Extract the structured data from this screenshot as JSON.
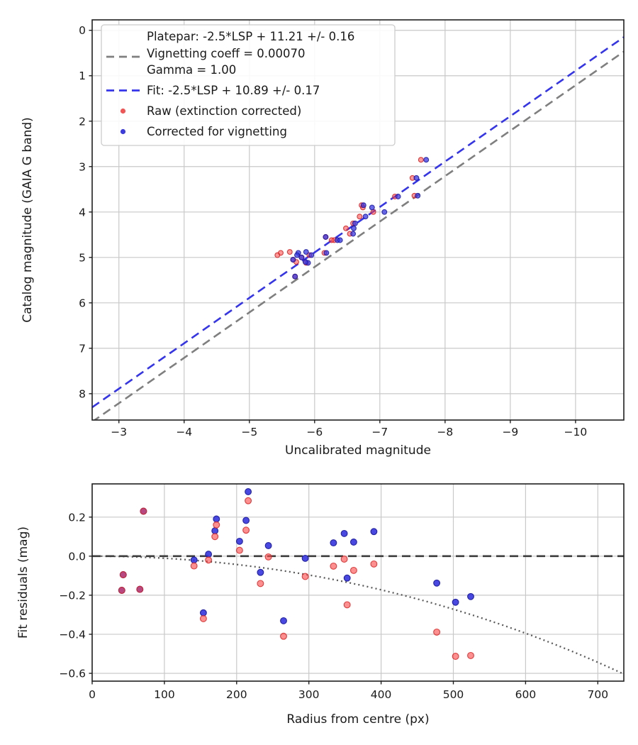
{
  "figure": {
    "background": "#ffffff",
    "grid_color": "#c9c9c9",
    "spine_color": "#1f1f1f"
  },
  "chart_data": [
    {
      "type": "scatter",
      "title": "",
      "xlabel": "Uncalibrated magnitude",
      "ylabel": "Catalog magnitude (GAIA G band)",
      "x_inverted": true,
      "y_inverted": true,
      "xlim": [
        -10.74,
        -2.59
      ],
      "ylim": [
        -0.23,
        8.58
      ],
      "grid": true,
      "x_ticks": {
        "values": [
          -3,
          -4,
          -5,
          -6,
          -7,
          -8,
          -9,
          -10
        ],
        "labels": [
          "−3",
          "−4",
          "−5",
          "−6",
          "−7",
          "−8",
          "−9",
          "−10"
        ]
      },
      "y_ticks": {
        "values": [
          0,
          1,
          2,
          3,
          4,
          5,
          6,
          7,
          8
        ],
        "labels": [
          "0",
          "1",
          "2",
          "3",
          "4",
          "5",
          "6",
          "7",
          "8"
        ]
      },
      "legend": {
        "position": "upper left",
        "entries": [
          {
            "marker": "dashed-line",
            "color": "#7f7f7f",
            "label_lines": [
              "Platepar: -2.5*LSP + 11.21 +/- 0.16",
              "Vignetting coeff = 0.00070",
              "Gamma = 1.00"
            ]
          },
          {
            "marker": "dashed-line",
            "color": "#3434ee",
            "label_lines": [
              "Fit: -2.5*LSP + 10.89 +/- 0.17"
            ]
          },
          {
            "marker": "dot",
            "color": "#f25555",
            "label_lines": [
              "Raw (extinction corrected)"
            ]
          },
          {
            "marker": "dot",
            "color": "#3c3cdf",
            "label_lines": [
              "Corrected for vignetting"
            ]
          }
        ]
      },
      "lines": [
        {
          "name": "platepar-line",
          "equation": "catalog = uncalibrated + 11.21",
          "slope": 1,
          "intercept": 11.21,
          "color": "#7f7f7f",
          "style": "dashed"
        },
        {
          "name": "fit-line",
          "equation": "catalog = uncalibrated + 10.89",
          "slope": 1,
          "intercept": 10.89,
          "color": "#3434ee",
          "style": "dashed"
        }
      ],
      "series": [
        {
          "name": "raw",
          "label": "Raw (extinction corrected)",
          "fill": "rgba(250,70,70,0.55)",
          "edge": "rgba(215,30,30,0.85)",
          "points": [
            [
              -5.67,
              5.05
            ],
            [
              -5.8,
              5.0
            ],
            [
              -6.17,
              4.55
            ],
            [
              -5.7,
              5.42
            ],
            [
              -6.59,
              4.25
            ],
            [
              -6.72,
              3.85
            ],
            [
              -5.92,
              4.95
            ],
            [
              -5.87,
              5.12
            ],
            [
              -6.15,
              4.9
            ],
            [
              -6.3,
              4.62
            ],
            [
              -6.54,
              4.48
            ],
            [
              -7.53,
              3.64
            ],
            [
              -7.5,
              3.25
            ],
            [
              -7.23,
              3.66
            ],
            [
              -7.63,
              2.85
            ],
            [
              -6.69,
              4.1
            ],
            [
              -6.48,
              4.36
            ],
            [
              -6.26,
              4.62
            ],
            [
              -6.74,
              3.9
            ],
            [
              -5.72,
              5.1
            ],
            [
              -6.9,
              4.0
            ],
            [
              -5.62,
              4.88
            ],
            [
              -5.48,
              4.9
            ],
            [
              -5.43,
              4.95
            ]
          ]
        },
        {
          "name": "corrected",
          "label": "Corrected for vignetting",
          "fill": "rgba(55,55,225,0.75)",
          "edge": "rgba(25,25,165,0.85)",
          "points": [
            [
              -5.67,
              5.05
            ],
            [
              -5.8,
              5.0
            ],
            [
              -6.17,
              4.55
            ],
            [
              -5.7,
              5.42
            ],
            [
              -6.62,
              4.25
            ],
            [
              -6.75,
              3.85
            ],
            [
              -5.95,
              4.95
            ],
            [
              -5.9,
              5.12
            ],
            [
              -6.18,
              4.9
            ],
            [
              -6.35,
              4.62
            ],
            [
              -6.59,
              4.48
            ],
            [
              -7.58,
              3.64
            ],
            [
              -7.56,
              3.25
            ],
            [
              -7.28,
              3.66
            ],
            [
              -7.71,
              2.85
            ],
            [
              -6.78,
              4.1
            ],
            [
              -6.6,
              4.36
            ],
            [
              -6.39,
              4.62
            ],
            [
              -6.88,
              3.9
            ],
            [
              -5.86,
              5.1
            ],
            [
              -7.07,
              4.0
            ],
            [
              -5.87,
              4.88
            ],
            [
              -5.75,
              4.9
            ],
            [
              -5.73,
              4.95
            ]
          ]
        }
      ]
    },
    {
      "type": "scatter",
      "title": "",
      "xlabel": "Radius from centre (px)",
      "ylabel": "Fit residuals (mag)",
      "x_inverted": false,
      "y_inverted": false,
      "xlim": [
        0,
        736
      ],
      "ylim": [
        -0.64,
        0.37
      ],
      "grid": true,
      "x_ticks": {
        "values": [
          0,
          100,
          200,
          300,
          400,
          500,
          600,
          700
        ],
        "labels": [
          "0",
          "100",
          "200",
          "300",
          "400",
          "500",
          "600",
          "700"
        ]
      },
      "y_ticks": {
        "values": [
          0.2,
          0.0,
          -0.2,
          -0.4,
          -0.6
        ],
        "labels": [
          "0.2",
          "0.0",
          "−0.2",
          "−0.4",
          "−0.6"
        ]
      },
      "lines": [
        {
          "name": "zero-line",
          "equation": "residual = 0",
          "slope": 0,
          "intercept": 0,
          "color": "#3d3d3d",
          "style": "dashed"
        }
      ],
      "curve": {
        "name": "vignetting-model",
        "description": "2.5*log10(cos^4(0.0007*r))",
        "coeff": 0.0007,
        "color": "#5a5a5a",
        "style": "dotted"
      },
      "series": [
        {
          "name": "corrected",
          "label": "Corrected for vignetting",
          "fill": "rgba(48,48,222,0.88)",
          "edge": "rgba(22,22,160,0.9)",
          "points": [
            [
              41,
              -0.175
            ],
            [
              43,
              -0.095
            ],
            [
              66,
              -0.17
            ],
            [
              71,
              0.23
            ],
            [
              141,
              -0.02
            ],
            [
              154,
              -0.29
            ],
            [
              161,
              0.01
            ],
            [
              170,
              0.13
            ],
            [
              172,
              0.19
            ],
            [
              204,
              0.076
            ],
            [
              213,
              0.183
            ],
            [
              216,
              0.33
            ],
            [
              233,
              -0.083
            ],
            [
              244,
              0.054
            ],
            [
              265,
              -0.331
            ],
            [
              295,
              -0.011
            ],
            [
              334,
              0.068
            ],
            [
              349,
              0.116
            ],
            [
              353,
              -0.112
            ],
            [
              362,
              0.072
            ],
            [
              390,
              0.126
            ],
            [
              477,
              -0.138
            ],
            [
              503,
              -0.236
            ],
            [
              524,
              -0.207
            ]
          ]
        },
        {
          "name": "raw",
          "label": "Raw (extinction corrected)",
          "fill": "rgba(250,75,75,0.62)",
          "edge": "rgba(218,35,35,0.85)",
          "points": [
            [
              41,
              -0.175
            ],
            [
              43,
              -0.095
            ],
            [
              66,
              -0.17
            ],
            [
              71,
              0.23
            ],
            [
              141,
              -0.05
            ],
            [
              154,
              -0.32
            ],
            [
              161,
              -0.02
            ],
            [
              170,
              0.1
            ],
            [
              172,
              0.16
            ],
            [
              204,
              0.03
            ],
            [
              213,
              0.133
            ],
            [
              216,
              0.284
            ],
            [
              233,
              -0.14
            ],
            [
              244,
              -0.004
            ],
            [
              265,
              -0.41
            ],
            [
              295,
              -0.104
            ],
            [
              334,
              -0.051
            ],
            [
              349,
              -0.015
            ],
            [
              353,
              -0.249
            ],
            [
              362,
              -0.073
            ],
            [
              390,
              -0.04
            ],
            [
              477,
              -0.389
            ],
            [
              503,
              -0.513
            ],
            [
              524,
              -0.509
            ]
          ]
        }
      ]
    }
  ]
}
